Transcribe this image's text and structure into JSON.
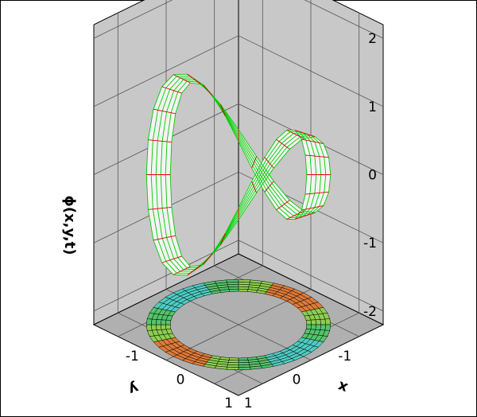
{
  "chart_data": {
    "type": "surface3d",
    "zlabel": "ϕ(x,y,t)",
    "xlabel": "x",
    "ylabel": "y",
    "z_ticks": [
      "2",
      "1",
      "0",
      "-1",
      "-2"
    ],
    "x_ticks": [
      "-1",
      "0",
      "1"
    ],
    "y_ticks": [
      "-1",
      "0",
      "1"
    ],
    "xlim": [
      -1.5,
      1.5
    ],
    "ylim": [
      -1.5,
      1.5
    ],
    "zlim": [
      -2.2,
      2.2
    ],
    "domain": {
      "shape": "annulus",
      "r_inner": 1.0,
      "r_outer": 1.35
    },
    "surface_description_values": {
      "mode": "cos(2*theta)",
      "amplitude": 1.0
    },
    "grid": true,
    "wall_color": "#c8c8c8",
    "floor_color": "#b0b0b0",
    "mesh_colors": {
      "radial": "#00cc00",
      "angular": "#dd0000"
    },
    "contour_colors": [
      "#e07b39",
      "#8ccf4f",
      "#55c46a",
      "#4ecdc4"
    ]
  }
}
